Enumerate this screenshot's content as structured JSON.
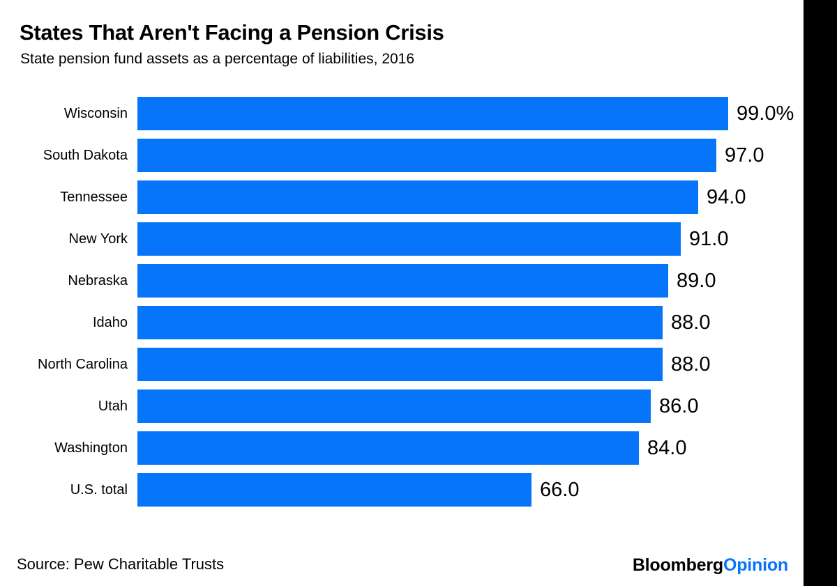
{
  "chart_data": {
    "type": "bar",
    "orientation": "horizontal",
    "title": "States That Aren't Facing a Pension Crisis",
    "subtitle": "State pension fund assets as a percentage of liabilities, 2016",
    "categories": [
      "Wisconsin",
      "South Dakota",
      "Tennessee",
      "New York",
      "Nebraska",
      "Idaho",
      "North Carolina",
      "Utah",
      "Washington",
      "U.S. total"
    ],
    "values": [
      99.0,
      97.0,
      94.0,
      91.0,
      89.0,
      88.0,
      88.0,
      86.0,
      84.0,
      66.0
    ],
    "value_labels": [
      "99.0%",
      "97.0",
      "94.0",
      "91.0",
      "89.0",
      "88.0",
      "88.0",
      "86.0",
      "84.0",
      "66.0"
    ],
    "xlim": [
      0,
      111.6
    ],
    "grid": false,
    "legend": "none",
    "bar_color": "#0775fa"
  },
  "footer": {
    "source": "Source: Pew Charitable Trusts",
    "brand": {
      "bloomberg": "Bloomberg",
      "opinion": "Opinion"
    }
  },
  "colors": {
    "accent_blue": "#0775fa",
    "text": "#000000",
    "background": "#ffffff",
    "right_band": "#000000"
  }
}
